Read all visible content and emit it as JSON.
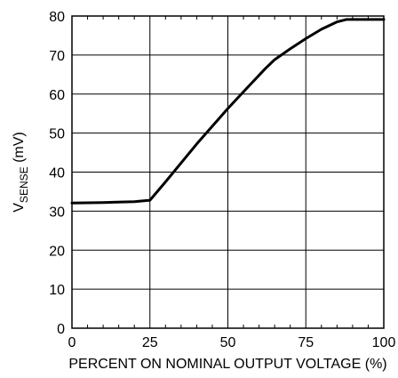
{
  "chart_data": {
    "type": "line",
    "xlabel": "PERCENT ON NOMINAL OUTPUT VOLTAGE (%)",
    "ylabel": {
      "prefix": "V",
      "subscript": "SENSE",
      "suffix": " (mV)"
    },
    "xlim": [
      0,
      100
    ],
    "ylim": [
      0,
      80
    ],
    "x_ticks": [
      0,
      25,
      50,
      75,
      100
    ],
    "y_ticks": [
      0,
      10,
      20,
      30,
      40,
      50,
      60,
      70,
      80
    ],
    "grid": true,
    "series": [
      {
        "x": [
          0,
          10,
          20,
          25,
          30,
          40,
          50,
          55,
          62,
          65,
          70,
          75,
          80,
          85,
          88,
          90,
          95,
          100
        ],
        "y": [
          32.1,
          32.2,
          32.4,
          32.8,
          37.5,
          47.2,
          56.3,
          60.6,
          66.5,
          68.8,
          71.6,
          74.2,
          76.6,
          78.5,
          79.1,
          79.1,
          79.1,
          79.1
        ]
      }
    ]
  }
}
